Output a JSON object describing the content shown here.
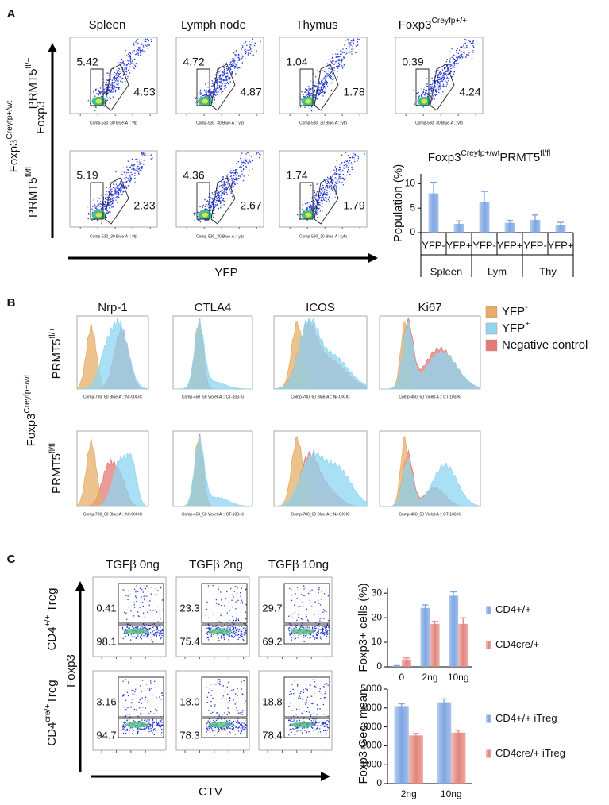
{
  "panels": {
    "A": {
      "letter": "A",
      "columns": [
        "Spleen",
        "Lymph node",
        "Thymus",
        [
          {
            "text": "Foxp3"
          },
          {
            "sup": "Creyfp+/+"
          }
        ]
      ],
      "row_labels": [
        [
          {
            "text": "PRMT5"
          },
          {
            "sup": "fl/+"
          }
        ],
        [
          {
            "text": "PRMT5"
          },
          {
            "sup": "fl/fl"
          }
        ]
      ],
      "genotype": [
        {
          "text": "Foxp3"
        },
        {
          "sup": "Creyfp+/wt"
        }
      ],
      "y_axis": "Foxp3",
      "x_axis": "YFP",
      "plot_axis_label": "Comp-530_30 Blue-A :: yfp",
      "gates": [
        [
          [
            "5.42",
            "4.53"
          ],
          [
            "4.72",
            "4.87"
          ],
          [
            "1.04",
            "1.78"
          ],
          [
            "0.39",
            "4.24"
          ]
        ],
        [
          [
            "5.19",
            "2.33"
          ],
          [
            "4.36",
            "2.67"
          ],
          [
            "1.74",
            "1.79"
          ]
        ]
      ]
    },
    "B": {
      "letter": "B",
      "columns": [
        "Nrp-1",
        "CTLA4",
        "ICOS",
        "Ki67"
      ],
      "row_labels": [
        [
          {
            "text": "PRMT5"
          },
          {
            "sup": "fl/+"
          }
        ],
        [
          {
            "text": "PRMT5"
          },
          {
            "sup": "fl/fl"
          }
        ]
      ],
      "genotype": [
        {
          "text": "Foxp3"
        },
        {
          "sup": "Creyfp+/wt"
        }
      ],
      "plot_axis_labels": [
        "Comp-780_60 Blue-A :: Nr-OX-IC",
        "Comp-450_50 Violet-A :: CT-103-Ki",
        "Comp-780_60 Blue-A :: Nr-OX-IC",
        "Comp-450_50 Violet-A :: CT-103-Ki"
      ],
      "legend": [
        {
          "label": [
            {
              "text": "YFP"
            },
            {
              "sup": "-"
            }
          ],
          "color": "#e6ad68"
        },
        {
          "label": [
            {
              "text": "YFP"
            },
            {
              "sup": "+"
            }
          ],
          "color": "#8ed6f2"
        },
        {
          "label": "Negative control",
          "color": "#e37c76"
        }
      ]
    },
    "C": {
      "letter": "C",
      "columns": [
        "TGFβ 0ng",
        "TGFβ 2ng",
        "TGFβ 10ng"
      ],
      "row_labels": [
        [
          {
            "text": "CD4"
          },
          {
            "sup": "+/+"
          },
          {
            "text": " Treg"
          }
        ],
        [
          {
            "text": "CD4"
          },
          {
            "sup": "cre/+"
          },
          {
            "text": "Treg"
          }
        ]
      ],
      "y_axis": "Foxp3",
      "x_axis": "CTV",
      "gates": [
        [
          [
            "0.41",
            "98.1"
          ],
          [
            "23.3",
            "75.4"
          ],
          [
            "29.7",
            "69.2"
          ]
        ],
        [
          [
            "3.16",
            "94.7"
          ],
          [
            "18.0",
            "78.3"
          ],
          [
            "18.8",
            "78.4"
          ]
        ]
      ]
    }
  },
  "chart_data": [
    {
      "type": "bar",
      "title": [
        {
          "text": "Foxp3"
        },
        {
          "sup": "Creyfp+/wt"
        },
        {
          "text": "PRMT5"
        },
        {
          "sup": "fl/fl"
        }
      ],
      "ylabel": "Population (%)",
      "categories": [
        "YFP-",
        "YFP+",
        "YFP-",
        "YFP+",
        "YFP-",
        "YFP+"
      ],
      "groups": [
        "Spleen",
        "Lym",
        "Thy"
      ],
      "values": [
        8.0,
        1.8,
        6.3,
        2.0,
        2.6,
        1.5
      ],
      "errors": [
        2.3,
        0.6,
        2.1,
        0.5,
        1.0,
        0.6
      ],
      "color": "#7ea6e2",
      "ylim": [
        0,
        12
      ],
      "yticks": [
        0,
        5,
        10
      ]
    },
    {
      "type": "bar",
      "ylabel": "Foxp3+ cells (%)",
      "categories": [
        "0",
        "2ng",
        "10ng"
      ],
      "series": [
        {
          "name": "CD4+/+",
          "color": "#7ea6e2",
          "values": [
            0.3,
            24,
            29
          ],
          "errors": [
            0.2,
            1.2,
            1.5
          ]
        },
        {
          "name": "CD4cre/+",
          "color": "#e1867c",
          "values": [
            3,
            17.5,
            17.5
          ],
          "errors": [
            0.6,
            1.0,
            2.5
          ]
        }
      ],
      "ylim": [
        0,
        32
      ],
      "yticks": [
        0,
        10,
        20,
        30
      ]
    },
    {
      "type": "bar",
      "ylabel": "Foxp3 Geo. mean",
      "categories": [
        "2ng",
        "10ng"
      ],
      "series": [
        {
          "name": "CD4+/+ iTreg",
          "color": "#7ea6e2",
          "values": [
            4100,
            4300
          ],
          "errors": [
            120,
            180
          ]
        },
        {
          "name": "CD4cre/+ iTreg",
          "color": "#e1867c",
          "values": [
            2550,
            2700
          ],
          "errors": [
            100,
            120
          ]
        }
      ],
      "ylim": [
        0,
        5000
      ],
      "yticks": [
        0,
        1000,
        2000,
        3000,
        4000,
        5000
      ]
    }
  ]
}
